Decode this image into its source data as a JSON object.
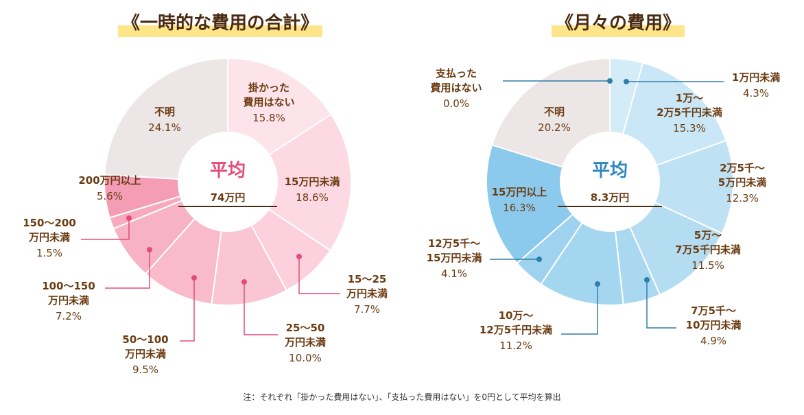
{
  "titles": {
    "left": "《一時的な費用の合計》",
    "right": "《月々の費用》"
  },
  "note": "注：それぞれ「掛かった費用はない」、「支払った費用はない」を0円として平均を算出",
  "chart_data": [
    {
      "type": "pie",
      "title": "《一時的な費用の合計》",
      "center_label": "平均",
      "center_value": "74万円",
      "slices": [
        {
          "label": "掛かった費用はない",
          "value": 15.8,
          "display": [
            "掛かった",
            "費用はない"
          ],
          "pct": "15.8%",
          "color": "#fde3ea"
        },
        {
          "label": "15万円未満",
          "value": 18.6,
          "display": [
            "15万円未満"
          ],
          "pct": "18.6%",
          "color": "#fdd9e3"
        },
        {
          "label": "15〜25万円未満",
          "value": 7.7,
          "display": [
            "15〜25",
            "万円未満"
          ],
          "pct": "7.7%",
          "color": "#fcd1dd"
        },
        {
          "label": "25〜50万円未満",
          "value": 10.0,
          "display": [
            "25〜50",
            "万円未満"
          ],
          "pct": "10.0%",
          "color": "#fbc6d4"
        },
        {
          "label": "50〜100万円未満",
          "value": 9.5,
          "display": [
            "50〜100",
            "万円未満"
          ],
          "pct": "9.5%",
          "color": "#f9bacb"
        },
        {
          "label": "100〜150万円未満",
          "value": 7.2,
          "display": [
            "100〜150",
            "万円未満"
          ],
          "pct": "7.2%",
          "color": "#f8b2c5"
        },
        {
          "label": "150〜200万円未満",
          "value": 1.5,
          "display": [
            "150〜200",
            "万円未満"
          ],
          "pct": "1.5%",
          "color": "#f7a9bf"
        },
        {
          "label": "200万円以上",
          "value": 5.6,
          "display": [
            "200万円以上"
          ],
          "pct": "5.6%",
          "color": "#f49db5"
        },
        {
          "label": "不明",
          "value": 24.1,
          "display": [
            "不明"
          ],
          "pct": "24.1%",
          "color": "#ece6e7"
        }
      ]
    },
    {
      "type": "pie",
      "title": "《月々の費用》",
      "center_label": "平均",
      "center_value": "8.3万円",
      "slices": [
        {
          "label": "支払った費用はない",
          "value": 0.0,
          "display": [
            "支払った",
            "費用はない"
          ],
          "pct": "0.0%",
          "color": "#d6eef8"
        },
        {
          "label": "1万円未満",
          "value": 4.3,
          "display": [
            "1万円未満"
          ],
          "pct": "4.3%",
          "color": "#d3ecf8"
        },
        {
          "label": "1万〜2万5千円未満",
          "value": 15.3,
          "display": [
            "1万〜",
            "2万5千円未満"
          ],
          "pct": "15.3%",
          "color": "#c9e7f6"
        },
        {
          "label": "2万5千〜5万円未満",
          "value": 12.3,
          "display": [
            "2万5千〜",
            "5万円未満"
          ],
          "pct": "12.3%",
          "color": "#bee2f4"
        },
        {
          "label": "5万〜7万5千円未満",
          "value": 11.5,
          "display": [
            "5万〜",
            "7万5千円未満"
          ],
          "pct": "11.5%",
          "color": "#b4ddf2"
        },
        {
          "label": "7万5千〜10万円未満",
          "value": 4.9,
          "display": [
            "7万5千〜",
            "10万円未満"
          ],
          "pct": "4.9%",
          "color": "#aad8f0"
        },
        {
          "label": "10万〜12万5千円未満",
          "value": 11.2,
          "display": [
            "10万〜",
            "12万5千円未満"
          ],
          "pct": "11.2%",
          "color": "#a5d6f0"
        },
        {
          "label": "12万5千〜15万円未満",
          "value": 4.1,
          "display": [
            "12万5千〜",
            "15万円未満"
          ],
          "pct": "4.1%",
          "color": "#9ed2ee"
        },
        {
          "label": "15万円以上",
          "value": 16.3,
          "display": [
            "15万円以上"
          ],
          "pct": "16.3%",
          "color": "#8bcaec"
        },
        {
          "label": "不明",
          "value": 20.2,
          "display": [
            "不明"
          ],
          "pct": "20.2%",
          "color": "#ece6e7"
        }
      ]
    }
  ]
}
